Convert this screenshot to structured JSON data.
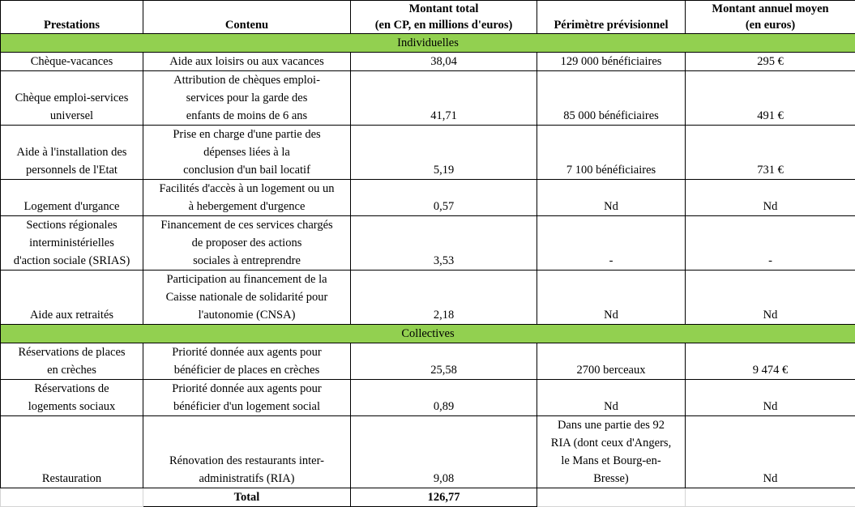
{
  "headers": [
    "Prestations",
    "Contenu",
    "Montant total\n(en CP, en millions d'euros)",
    "Périmètre prévisionnel",
    "Montant annuel moyen\n(en euros)"
  ],
  "sections": {
    "individual": "Individuelles",
    "collective": "Collectives"
  },
  "individual_rows": [
    [
      "Chèque-vacances",
      "Aide aux loisirs ou aux vacances",
      "38,04",
      "129 000 bénéficiaires",
      "295 €"
    ],
    [
      "Chèque emploi-services\nuniversel",
      "Attribution de chèques emploi-\nservices pour la garde des\nenfants de moins de 6 ans",
      "41,71",
      "85 000 bénéficiaires",
      "491 €"
    ],
    [
      "Aide à l'installation des\npersonnels de l'Etat",
      "Prise en charge d'une partie des\ndépenses liées à la\nconclusion d'un bail locatif",
      "5,19",
      "7 100 bénéficiaires",
      "731 €"
    ],
    [
      "Logement d'urgance",
      "Facilités d'accès à un logement ou un\nà hebergement d'urgence",
      "0,57",
      "Nd",
      "Nd"
    ],
    [
      "Sections régionales\ninterministérielles\nd'action sociale (SRIAS)",
      "Financement de ces services chargés\nde proposer des actions\nsociales à entreprendre",
      "3,53",
      "-",
      "-"
    ],
    [
      "Aide aux retraités",
      "Participation au financement de la\nCaisse nationale de solidarité pour\nl'autonomie (CNSA)",
      "2,18",
      "Nd",
      "Nd"
    ]
  ],
  "collective_rows": [
    [
      "Réservations de places\nen crèches",
      "Priorité donnée aux agents pour\nbénéficier de places en crèches",
      "25,58",
      "2700 berceaux",
      "9 474 €"
    ],
    [
      "Réservations de\nlogements sociaux",
      "Priorité donnée aux agents pour\nbénéficier d'un logement social",
      "0,89",
      "Nd",
      "Nd"
    ],
    [
      "Restauration",
      "Rénovation des restaurants inter-\nadministratifs (RIA)",
      "9,08",
      "Dans une partie des 92\nRIA (dont ceux d'Angers,\nle Mans et Bourg-en-\nBresse)",
      "Nd"
    ]
  ],
  "total": {
    "label": "Total",
    "value": "126,77"
  },
  "colors": {
    "section_bg": "#92d050"
  }
}
